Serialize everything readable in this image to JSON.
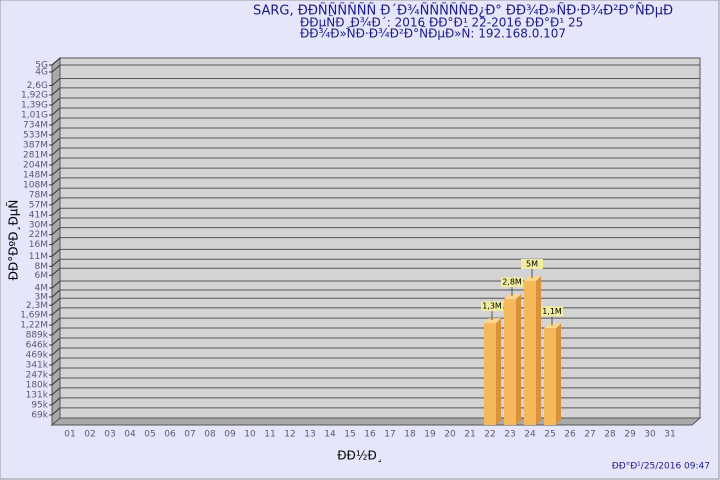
{
  "chart_data": {
    "type": "bar",
    "title": "SARG,  ĐĐÑÑÑÑÑÑ Đ´Đ¾ÑÑÑÑÑĐ¿Đ° ĐĐ¾Đ»ÑĐ·Đ¾Đ²Đ°ÑĐµĐ",
    "subtitle": "ĐĐµÑĐ¸Đ¾Đ´: 2016 ĐĐ°Đ¹ 22-2016 ĐĐ°Đ¹ 25",
    "subtitle2": "ĐĐ¾Đ»ÑĐ·Đ¾Đ²Đ°ÑĐµĐ»Ñ: 192.168.0.107",
    "ylabel": "ĐĐ°ĐºĐ¸ĐµÑ",
    "xlabel": "ĐĐ½Đ¸",
    "footer": "ĐĐ°Đ¹/25/2016 09:47",
    "categories": [
      "01",
      "02",
      "03",
      "04",
      "05",
      "06",
      "07",
      "08",
      "09",
      "10",
      "11",
      "12",
      "13",
      "14",
      "15",
      "16",
      "17",
      "18",
      "19",
      "20",
      "21",
      "22",
      "23",
      "24",
      "25",
      "26",
      "27",
      "28",
      "29",
      "30",
      "31"
    ],
    "values": [
      null,
      null,
      null,
      null,
      null,
      null,
      null,
      null,
      null,
      null,
      null,
      null,
      null,
      null,
      null,
      null,
      null,
      null,
      null,
      null,
      null,
      1300000,
      2800000,
      5000000,
      1100000,
      null,
      null,
      null,
      null,
      null,
      null
    ],
    "value_labels": [
      null,
      null,
      null,
      null,
      null,
      null,
      null,
      null,
      null,
      null,
      null,
      null,
      null,
      null,
      null,
      null,
      null,
      null,
      null,
      null,
      null,
      "1,3M",
      "2,8M",
      "5M",
      "1,1M",
      null,
      null,
      null,
      null,
      null,
      null
    ],
    "color": "#f5b85a",
    "log_scale": true,
    "grid": true,
    "ylim": [
      50000,
      5000000000
    ],
    "yticks": [
      {
        "value": 69000,
        "label": "69k"
      },
      {
        "value": 95000,
        "label": "95k"
      },
      {
        "value": 131000,
        "label": "131k"
      },
      {
        "value": 180000,
        "label": "180k"
      },
      {
        "value": 247000,
        "label": "247k"
      },
      {
        "value": 341000,
        "label": "341k"
      },
      {
        "value": 469000,
        "label": "469k"
      },
      {
        "value": 646000,
        "label": "646k"
      },
      {
        "value": 889000,
        "label": "889k"
      },
      {
        "value": 1220000,
        "label": "1,22M"
      },
      {
        "value": 1690000,
        "label": "1,69M"
      },
      {
        "value": 2300000,
        "label": "2,3M"
      },
      {
        "value": 3000000,
        "label": "3M"
      },
      {
        "value": 4000000,
        "label": "4M"
      },
      {
        "value": 6000000,
        "label": "6M"
      },
      {
        "value": 8000000,
        "label": "8M"
      },
      {
        "value": 11000000,
        "label": "11M"
      },
      {
        "value": 16000000,
        "label": "16M"
      },
      {
        "value": 22000000,
        "label": "22M"
      },
      {
        "value": 30000000,
        "label": "30M"
      },
      {
        "value": 41000000,
        "label": "41M"
      },
      {
        "value": 57000000,
        "label": "57M"
      },
      {
        "value": 78000000,
        "label": "78M"
      },
      {
        "value": 108000000,
        "label": "108M"
      },
      {
        "value": 148000000,
        "label": "148M"
      },
      {
        "value": 204000000,
        "label": "204M"
      },
      {
        "value": 281000000,
        "label": "281M"
      },
      {
        "value": 387000000,
        "label": "387M"
      },
      {
        "value": 533000000,
        "label": "533M"
      },
      {
        "value": 734000000,
        "label": "734M"
      },
      {
        "value": 1010000000,
        "label": "1,01G"
      },
      {
        "value": 1390000000,
        "label": "1,39G"
      },
      {
        "value": 1920000000,
        "label": "1,92G"
      },
      {
        "value": 2600000000,
        "label": "2,6G"
      },
      {
        "value": 4000000000,
        "label": "4G"
      },
      {
        "value": 5000000000,
        "label": "5G"
      }
    ]
  }
}
